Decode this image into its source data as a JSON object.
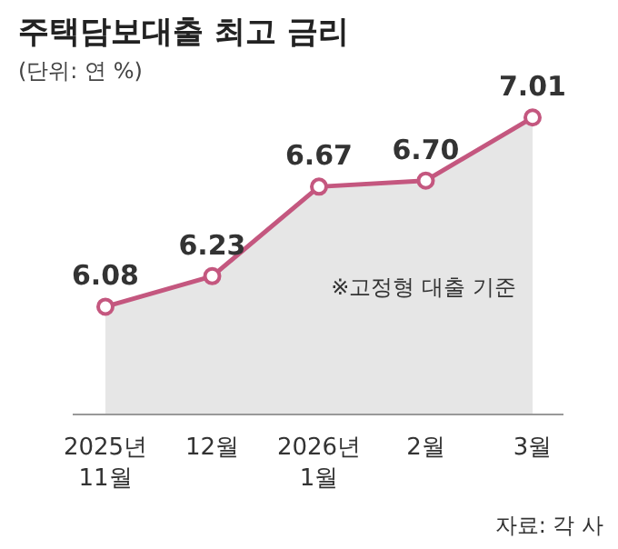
{
  "chart_data": {
    "type": "area",
    "title": "주택담보대출 최고 금리",
    "subtitle": "(단위: 연 %)",
    "categories": [
      "2025년\n11월",
      "12월",
      "2026년\n1월",
      "2월",
      "3월"
    ],
    "series": [
      {
        "color": "#c4577f",
        "values": [
          6.08,
          6.23,
          6.67,
          6.7,
          7.01
        ],
        "value_labels": [
          "6.08",
          "6.23",
          "6.67",
          "6.70",
          "7.01"
        ]
      }
    ],
    "tick_labels": "x",
    "marker": "circle",
    "annotations": [
      "※고정형 대출 기준",
      "자료: 각 사"
    ]
  }
}
